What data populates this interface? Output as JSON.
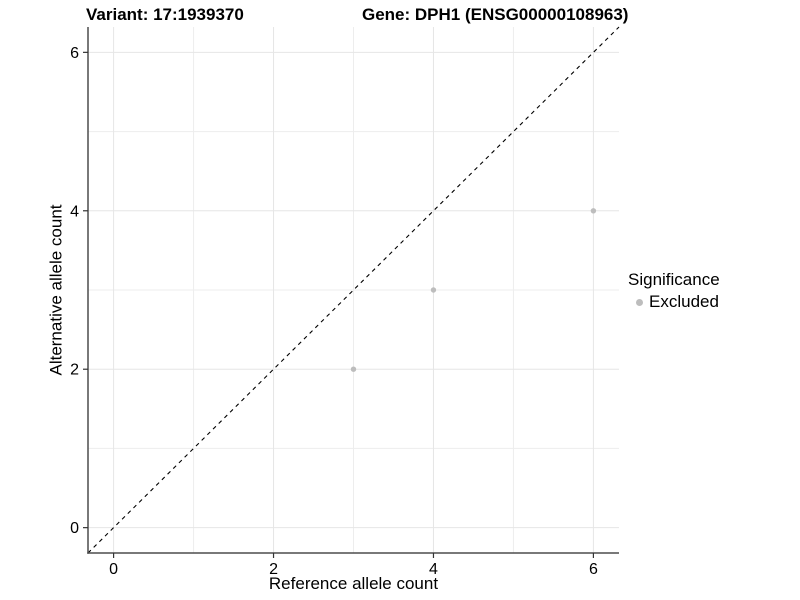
{
  "chart_data": {
    "type": "scatter",
    "title_left": "Variant: 17:1939370",
    "title_right": "Gene: DPH1 (ENSG00000108963)",
    "xlabel": "Reference allele count",
    "ylabel": "Alternative allele count",
    "xlim": [
      -0.32,
      6.32
    ],
    "ylim": [
      -0.32,
      6.32
    ],
    "xticks": [
      0,
      2,
      4,
      6
    ],
    "yticks": [
      0,
      2,
      4,
      6
    ],
    "x_minor_grid": [
      1,
      3,
      5
    ],
    "y_minor_grid": [
      1,
      3,
      5
    ],
    "grid": true,
    "legend_position": "right",
    "reference_line": {
      "kind": "identity",
      "equation": "y = x",
      "style": "dashed",
      "color": "#000000"
    },
    "series": [
      {
        "name": "Excluded",
        "color": "#bdbdbd",
        "points": [
          [
            3,
            2
          ],
          [
            4,
            3
          ],
          [
            6,
            4
          ]
        ]
      }
    ],
    "legend": {
      "title": "Significance",
      "entries": [
        {
          "label": "Excluded",
          "color": "#bdbdbd"
        }
      ]
    }
  },
  "style_colors": {
    "axis_line": "#4d4d4d",
    "tick_mark": "#333333",
    "major_grid": "#e6e6e6",
    "minor_grid": "#ededed",
    "text": "#000000",
    "background": "#ffffff"
  }
}
